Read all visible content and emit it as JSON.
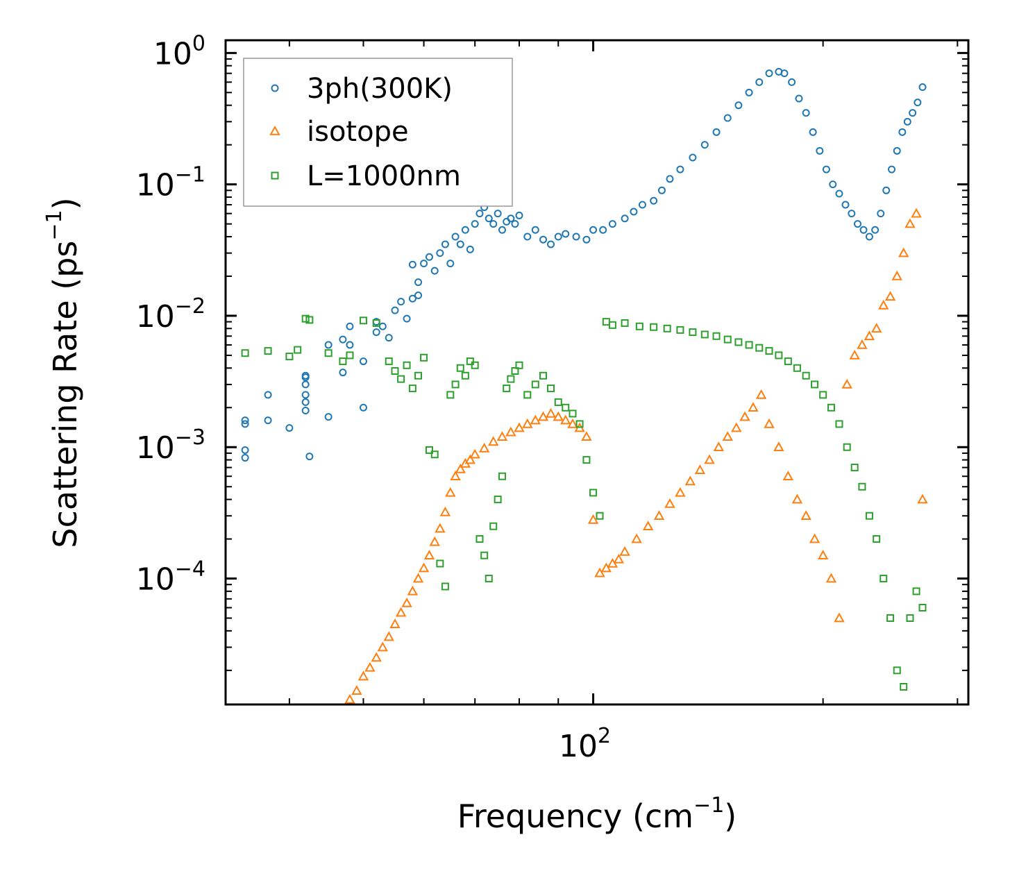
{
  "chart_data": {
    "type": "scatter",
    "xscale": "log",
    "yscale": "log",
    "xlim": [
      33,
      310
    ],
    "ylim": [
      1.1e-05,
      1.25
    ],
    "xlabel_main": "Frequency (cm",
    "xlabel_exp": "−1",
    "xlabel_close": ")",
    "ylabel_main": "Scattering Rate (ps",
    "ylabel_exp": "−1",
    "ylabel_close": ")",
    "xticks": [
      {
        "value": 100,
        "base": "10",
        "exp": "2"
      }
    ],
    "yticks": [
      {
        "value": 1,
        "base": "10",
        "exp": "0"
      },
      {
        "value": 0.1,
        "base": "10",
        "exp": "−1"
      },
      {
        "value": 0.01,
        "base": "10",
        "exp": "−2"
      },
      {
        "value": 0.001,
        "base": "10",
        "exp": "−3"
      },
      {
        "value": 0.0001,
        "base": "10",
        "exp": "−4"
      }
    ],
    "legend_position": "top-left",
    "series": [
      {
        "name": "3ph(300K)",
        "marker": "circle",
        "color": "#1f77b4",
        "x": [
          35,
          35,
          35,
          35,
          37.5,
          37.5,
          40,
          42,
          42,
          42,
          42,
          42,
          42,
          42.5,
          45,
          45,
          47,
          47,
          48,
          48,
          50,
          50,
          52,
          52,
          53,
          54,
          55,
          56,
          57,
          58,
          58,
          59,
          59,
          60,
          61,
          62,
          63,
          64,
          65,
          66,
          67,
          68,
          69,
          70,
          71,
          72,
          73,
          74,
          75,
          76,
          77,
          78,
          79,
          80,
          82,
          84,
          86,
          88,
          90,
          92,
          95,
          98,
          100,
          103,
          106,
          110,
          113,
          116,
          120,
          123,
          126,
          130,
          135,
          140,
          145,
          150,
          155,
          160,
          165,
          170,
          175,
          178,
          182,
          186,
          190,
          194,
          198,
          202,
          206,
          210,
          214,
          218,
          222,
          226,
          230,
          234,
          238,
          242,
          246,
          250,
          254,
          258,
          262,
          266,
          270
        ],
        "y": [
          0.00083,
          0.00095,
          0.0015,
          0.0016,
          0.0016,
          0.0025,
          0.0014,
          0.0019,
          0.0022,
          0.0025,
          0.003,
          0.0034,
          0.0035,
          0.00085,
          0.0017,
          0.006,
          0.0037,
          0.0066,
          0.006,
          0.0083,
          0.0045,
          0.002,
          0.0075,
          0.009,
          0.0083,
          0.0068,
          0.011,
          0.0128,
          0.0095,
          0.0135,
          0.0245,
          0.018,
          0.0143,
          0.025,
          0.028,
          0.022,
          0.03,
          0.035,
          0.025,
          0.04,
          0.035,
          0.045,
          0.032,
          0.05,
          0.06,
          0.067,
          0.055,
          0.05,
          0.06,
          0.045,
          0.052,
          0.055,
          0.05,
          0.058,
          0.04,
          0.045,
          0.038,
          0.035,
          0.04,
          0.042,
          0.04,
          0.038,
          0.045,
          0.045,
          0.05,
          0.055,
          0.062,
          0.07,
          0.075,
          0.09,
          0.11,
          0.13,
          0.16,
          0.2,
          0.25,
          0.32,
          0.4,
          0.5,
          0.6,
          0.7,
          0.72,
          0.7,
          0.6,
          0.45,
          0.35,
          0.25,
          0.18,
          0.13,
          0.1,
          0.085,
          0.07,
          0.06,
          0.05,
          0.045,
          0.04,
          0.045,
          0.06,
          0.09,
          0.13,
          0.18,
          0.25,
          0.3,
          0.35,
          0.42,
          0.55
        ]
      },
      {
        "name": "isotope",
        "marker": "triangle",
        "color": "#ff7f0e",
        "x": [
          48,
          49,
          50,
          51,
          52,
          53,
          54,
          55,
          56,
          57,
          58,
          59,
          60,
          61,
          62,
          63,
          64,
          65,
          66,
          67,
          68,
          69,
          70,
          72,
          74,
          76,
          78,
          80,
          82,
          84,
          86,
          88,
          90,
          92,
          94,
          96,
          98,
          100,
          102,
          104,
          106,
          108,
          110,
          114,
          118,
          122,
          126,
          130,
          134,
          138,
          142,
          146,
          150,
          154,
          158,
          162,
          166,
          170,
          175,
          180,
          185,
          190,
          195,
          200,
          205,
          210,
          215,
          220,
          225,
          230,
          235,
          240,
          245,
          250,
          255,
          260,
          265,
          270
        ],
        "y": [
          1.2e-05,
          1.4e-05,
          1.8e-05,
          2.1e-05,
          2.5e-05,
          3e-05,
          3.6e-05,
          4.5e-05,
          5.5e-05,
          6.5e-05,
          8e-05,
          0.0001,
          0.00012,
          0.00015,
          0.00019,
          0.00024,
          0.00032,
          0.00045,
          0.0006,
          0.00068,
          0.00075,
          0.0008,
          0.00088,
          0.00098,
          0.0011,
          0.0012,
          0.0013,
          0.0014,
          0.0015,
          0.0016,
          0.0017,
          0.0018,
          0.0017,
          0.0016,
          0.0015,
          0.0014,
          0.0012,
          0.00028,
          0.00011,
          0.00012,
          0.00013,
          0.00014,
          0.00016,
          0.0002,
          0.00025,
          0.0003,
          0.00037,
          0.00045,
          0.00055,
          0.00067,
          0.0008,
          0.001,
          0.0012,
          0.0014,
          0.0017,
          0.002,
          0.0025,
          0.0015,
          0.001,
          0.0006,
          0.0004,
          0.0003,
          0.0002,
          0.00015,
          0.0001,
          5e-05,
          0.003,
          0.005,
          0.006,
          0.007,
          0.008,
          0.012,
          0.014,
          0.02,
          0.03,
          0.05,
          0.06,
          0.0004
        ]
      },
      {
        "name": "L=1000nm",
        "marker": "square",
        "color": "#2ca02c",
        "x": [
          35,
          37.5,
          40,
          41,
          42,
          42.5,
          45,
          47,
          48,
          50,
          52,
          54,
          55,
          56,
          57,
          58,
          59,
          60,
          61,
          62,
          63,
          64,
          65,
          66,
          67,
          68,
          69,
          70,
          71,
          72,
          73,
          74,
          75,
          76,
          77,
          78,
          79,
          80,
          82,
          84,
          86,
          88,
          90,
          92,
          94,
          96,
          98,
          100,
          102,
          104,
          106,
          110,
          115,
          120,
          125,
          130,
          135,
          140,
          145,
          150,
          155,
          160,
          165,
          170,
          175,
          180,
          185,
          190,
          195,
          200,
          205,
          210,
          215,
          220,
          225,
          230,
          235,
          240,
          245,
          250,
          255,
          260,
          265,
          270
        ],
        "y": [
          0.0052,
          0.0054,
          0.0049,
          0.0055,
          0.0095,
          0.0093,
          0.0052,
          0.0045,
          0.005,
          0.0092,
          0.0088,
          0.0045,
          0.0038,
          0.0033,
          0.0042,
          0.0028,
          0.0035,
          0.0048,
          0.00095,
          0.00088,
          0.00013,
          8.7e-05,
          0.0025,
          0.003,
          0.004,
          0.0035,
          0.0045,
          0.0042,
          0.0002,
          0.00015,
          0.0001,
          0.00025,
          0.0004,
          0.0006,
          0.0028,
          0.0033,
          0.0038,
          0.0042,
          0.0025,
          0.003,
          0.0035,
          0.0028,
          0.0022,
          0.002,
          0.0018,
          0.0015,
          0.0008,
          0.00045,
          0.0003,
          0.009,
          0.0085,
          0.0088,
          0.0083,
          0.0082,
          0.008,
          0.0078,
          0.0075,
          0.0072,
          0.007,
          0.0066,
          0.0063,
          0.006,
          0.0057,
          0.0054,
          0.005,
          0.0045,
          0.004,
          0.0035,
          0.003,
          0.0025,
          0.002,
          0.0015,
          0.001,
          0.0007,
          0.0005,
          0.0003,
          0.0002,
          0.0001,
          5e-05,
          2e-05,
          1.5e-05,
          5e-05,
          8e-05,
          6e-05
        ]
      }
    ]
  }
}
